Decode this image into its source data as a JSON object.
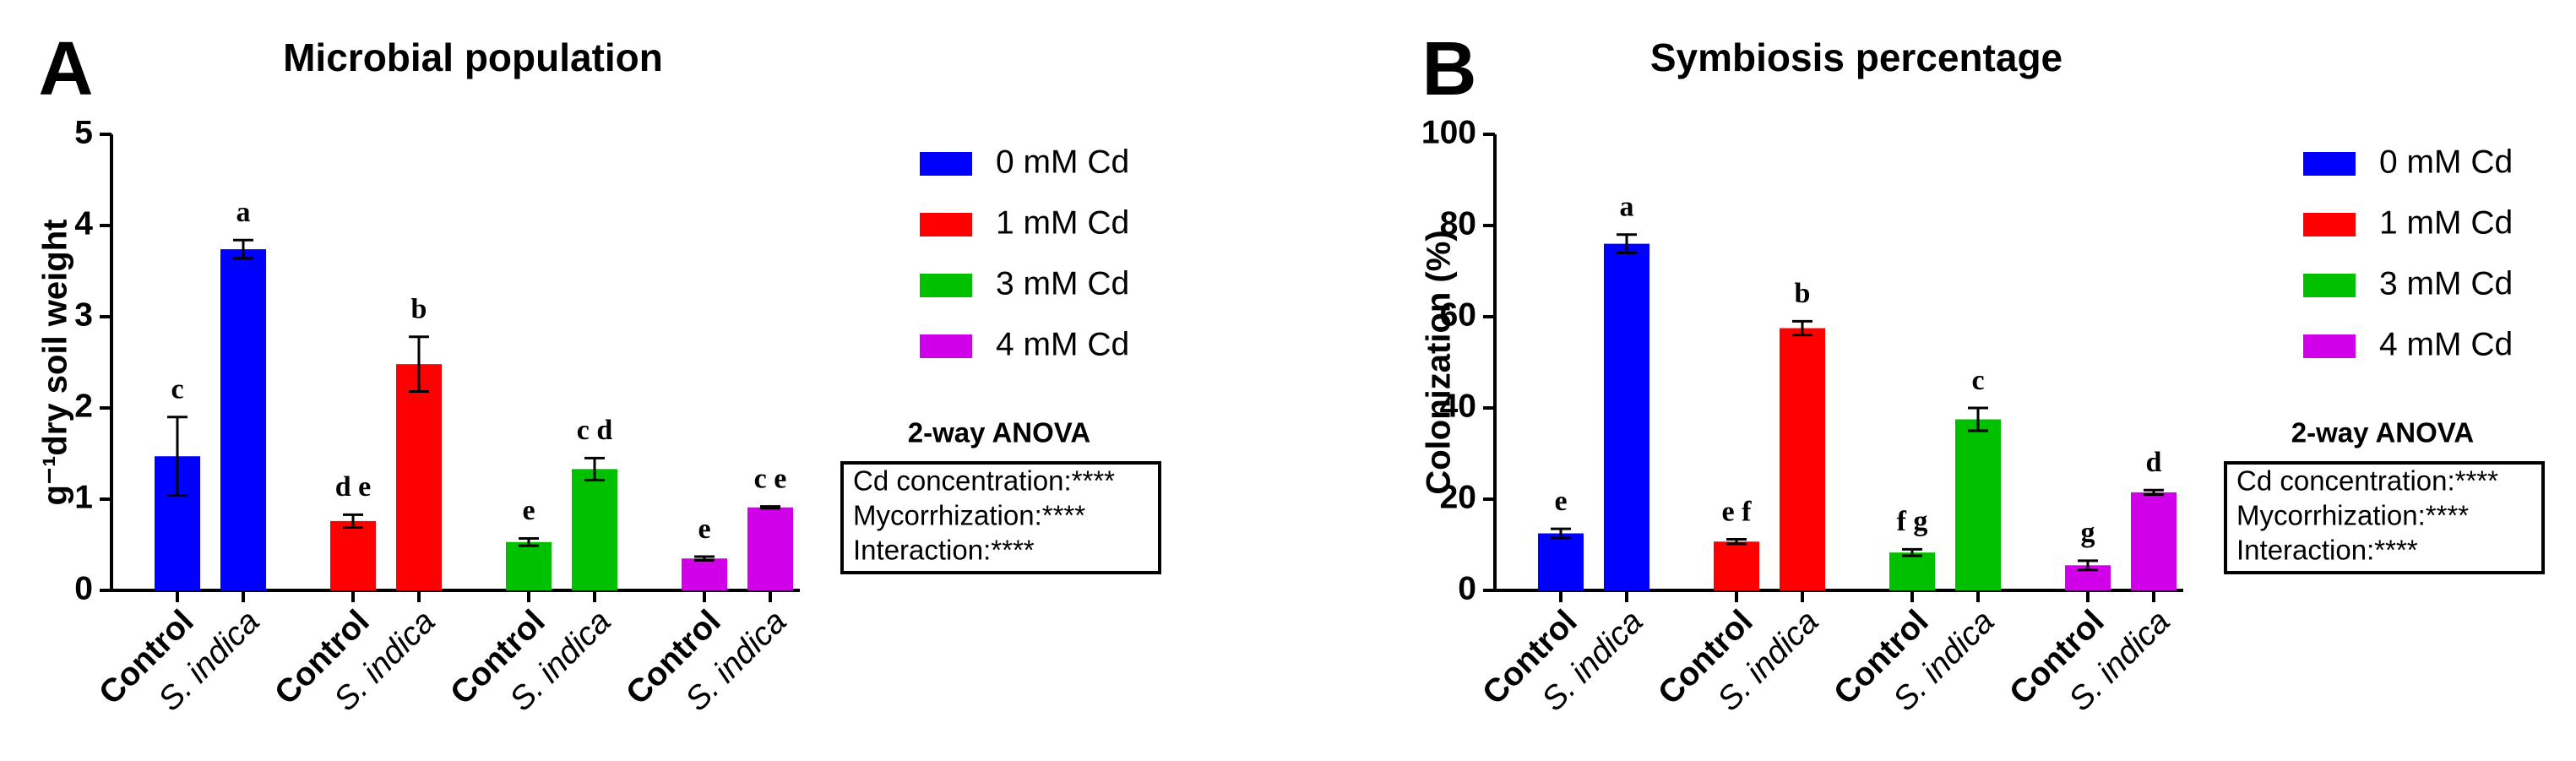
{
  "chart_data": [
    {
      "type": "bar",
      "panel": "A",
      "title": "Microbial population",
      "ylabel": "g⁻¹dry soil weight",
      "categories": [
        "Control",
        "S. indica"
      ],
      "series": [
        {
          "name": "0 mM Cd",
          "color": "#0000ff",
          "values": [
            1.47,
            3.74
          ],
          "errors": [
            0.43,
            0.1
          ],
          "letters": [
            "c",
            "a"
          ]
        },
        {
          "name": "1 mM Cd",
          "color": "#ff0000",
          "values": [
            0.76,
            2.48
          ],
          "errors": [
            0.07,
            0.3
          ],
          "letters": [
            "d e",
            "b"
          ]
        },
        {
          "name": "3 mM Cd",
          "color": "#00c000",
          "values": [
            0.53,
            1.33
          ],
          "errors": [
            0.04,
            0.12
          ],
          "letters": [
            "e",
            "c d"
          ]
        },
        {
          "name": "4 mM Cd",
          "color": "#d000e8",
          "values": [
            0.35,
            0.91
          ],
          "errors": [
            0.02,
            0.01
          ],
          "letters": [
            "e",
            "c e"
          ]
        }
      ],
      "ylim": [
        0,
        5
      ],
      "yticks": [
        0,
        1,
        2,
        3,
        4,
        5
      ],
      "legend": "upper right",
      "anova": {
        "title": "2-way ANOVA",
        "lines": [
          "Cd concentration:****",
          "Mycorrhization:****",
          "Interaction:****"
        ]
      }
    },
    {
      "type": "bar",
      "panel": "B",
      "title": "Symbiosis percentage",
      "ylabel": "Colonization (%)",
      "categories": [
        "Control",
        "S. indica"
      ],
      "series": [
        {
          "name": "0 mM Cd",
          "color": "#0000ff",
          "values": [
            12.5,
            76
          ],
          "errors": [
            1,
            2
          ],
          "letters": [
            "e",
            "a"
          ]
        },
        {
          "name": "1 mM Cd",
          "color": "#ff0000",
          "values": [
            10.7,
            57.5
          ],
          "errors": [
            0.5,
            1.5
          ],
          "letters": [
            "e f",
            "b"
          ]
        },
        {
          "name": "3 mM Cd",
          "color": "#00c000",
          "values": [
            8.3,
            37.5
          ],
          "errors": [
            0.7,
            2.5
          ],
          "letters": [
            "f g",
            "c"
          ]
        },
        {
          "name": "4 mM Cd",
          "color": "#d000e8",
          "values": [
            5.5,
            21.5
          ],
          "errors": [
            1,
            0.5
          ],
          "letters": [
            "g",
            "d"
          ]
        }
      ],
      "ylim": [
        0,
        100
      ],
      "yticks": [
        0,
        20,
        40,
        60,
        80,
        100
      ],
      "legend": "upper right",
      "anova": {
        "title": "2-way ANOVA",
        "lines": [
          "Cd concentration:****",
          "Mycorrhization:****",
          "Interaction:****"
        ]
      }
    }
  ]
}
